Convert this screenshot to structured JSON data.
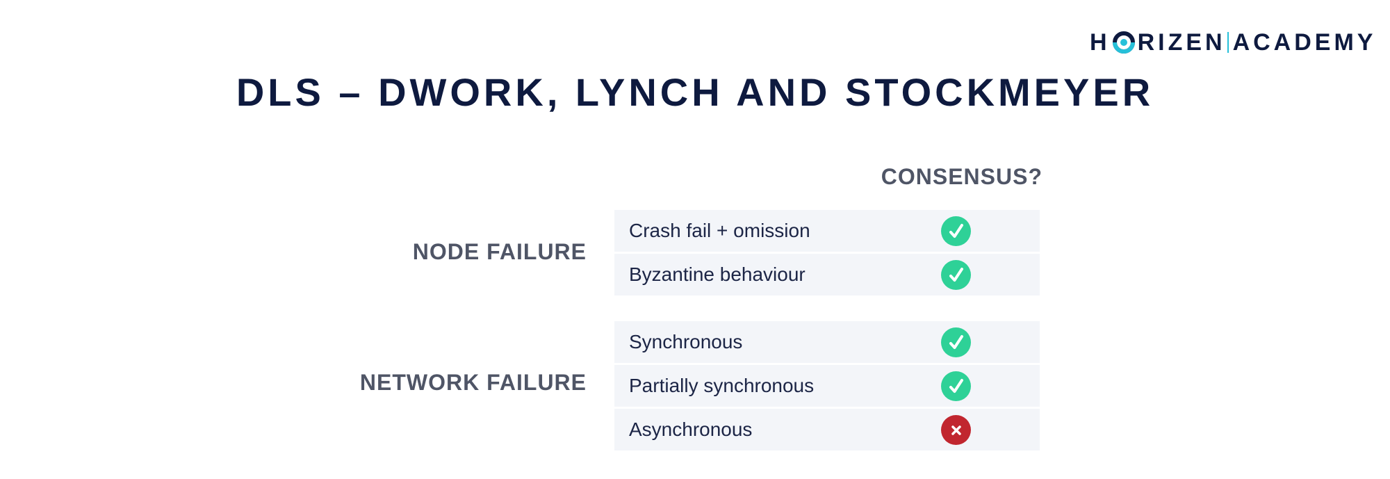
{
  "logo": {
    "left_text": "H",
    "middle_text": "RIZEN",
    "right_text": "ACADEMY"
  },
  "title": "DLS – DWORK, LYNCH AND STOCKMEYER",
  "column_header": "CONSENSUS?",
  "groups": [
    {
      "label": "NODE FAILURE",
      "rows": [
        {
          "label": "Crash fail + omission",
          "consensus": "yes",
          "icon": "check-icon"
        },
        {
          "label": "Byzantine behaviour",
          "consensus": "yes",
          "icon": "check-icon"
        }
      ]
    },
    {
      "label": "NETWORK FAILURE",
      "rows": [
        {
          "label": "Synchronous",
          "consensus": "yes",
          "icon": "check-icon"
        },
        {
          "label": "Partially synchronous",
          "consensus": "yes",
          "icon": "check-icon"
        },
        {
          "label": "Asynchronous",
          "consensus": "no",
          "icon": "cross-icon"
        }
      ]
    }
  ],
  "colors": {
    "navy": "#0e1a3f",
    "gray_label": "#4f5566",
    "row_bg": "#f3f5f9",
    "check_green": "#2ed197",
    "cross_red": "#c1262f",
    "logo_accent": "#26c0d9"
  }
}
